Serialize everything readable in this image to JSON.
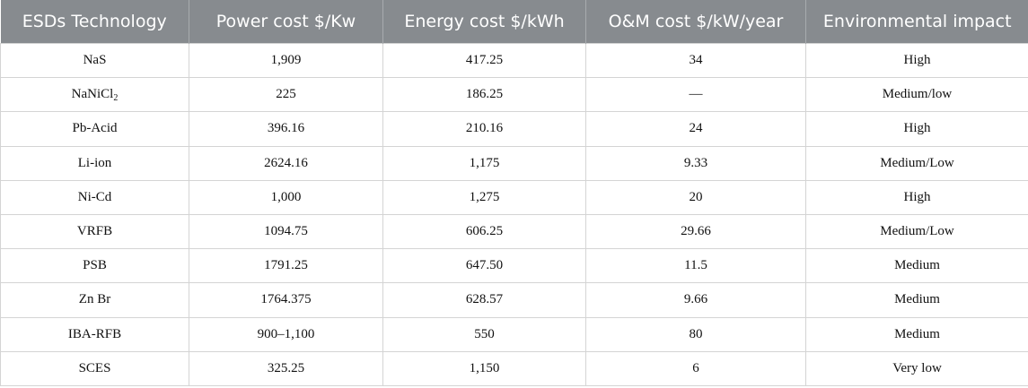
{
  "table": {
    "headers": [
      "ESDs Technology",
      "Power cost $/Kw",
      "Energy cost $/kWh",
      "O&M cost $/kW/year",
      "Environmental impact"
    ],
    "rows": [
      {
        "tech": "NaS",
        "power": "1,909",
        "energy": "417.25",
        "om": "34",
        "env": "High"
      },
      {
        "tech": "NaNiCl",
        "tech_sub": "2",
        "power": "225",
        "energy": "186.25",
        "om": "—",
        "env": "Medium/low"
      },
      {
        "tech": "Pb-Acid",
        "power": "396.16",
        "energy": "210.16",
        "om": "24",
        "env": "High"
      },
      {
        "tech": "Li-ion",
        "power": "2624.16",
        "energy": "1,175",
        "om": "9.33",
        "env": "Medium/Low"
      },
      {
        "tech": "Ni-Cd",
        "power": "1,000",
        "energy": "1,275",
        "om": "20",
        "env": "High"
      },
      {
        "tech": "VRFB",
        "power": "1094.75",
        "energy": "606.25",
        "om": "29.66",
        "env": "Medium/Low"
      },
      {
        "tech": "PSB",
        "power": "1791.25",
        "energy": "647.50",
        "om": "11.5",
        "env": "Medium"
      },
      {
        "tech": "Zn Br",
        "power": "1764.375",
        "energy": "628.57",
        "om": "9.66",
        "env": "Medium"
      },
      {
        "tech": "IBA-RFB",
        "power": "900–1,100",
        "energy": "550",
        "om": "80",
        "env": "Medium"
      },
      {
        "tech": "SCES",
        "power": "325.25",
        "energy": "1,150",
        "om": "6",
        "env": "Very low"
      }
    ]
  }
}
